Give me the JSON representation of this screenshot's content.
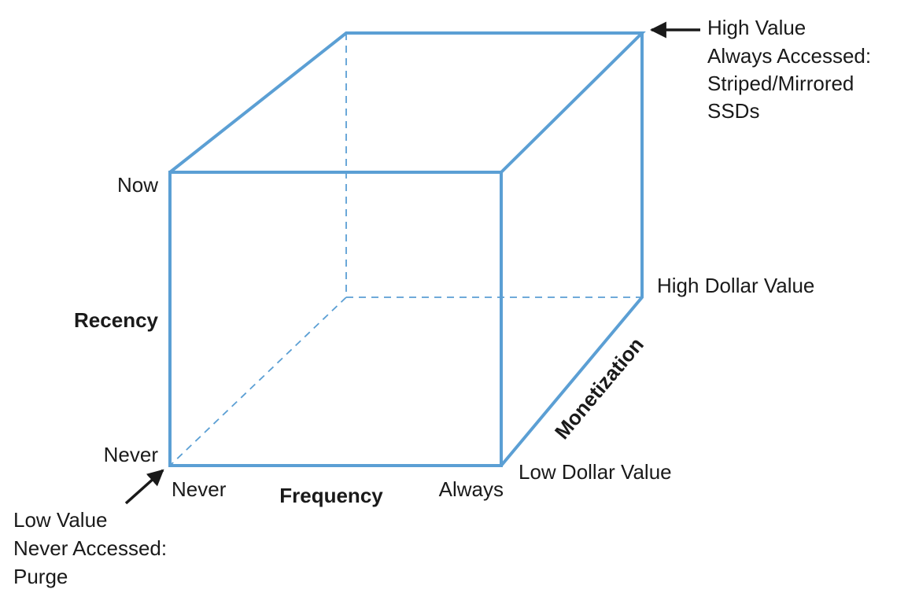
{
  "axes": {
    "recency": {
      "title": "Recency",
      "low": "Never",
      "high": "Now"
    },
    "frequency": {
      "title": "Frequency",
      "low": "Never",
      "high": "Always"
    },
    "monetization": {
      "title": "Monetization",
      "low": "Low Dollar Value",
      "high": "High Dollar Value"
    }
  },
  "annotations": [
    {
      "lines": [
        "High Value",
        "Always Accessed:",
        "Striped/Mirrored",
        "SSDs"
      ]
    },
    {
      "lines": [
        "Low Value",
        "Never Accessed:",
        "Purge"
      ]
    }
  ]
}
